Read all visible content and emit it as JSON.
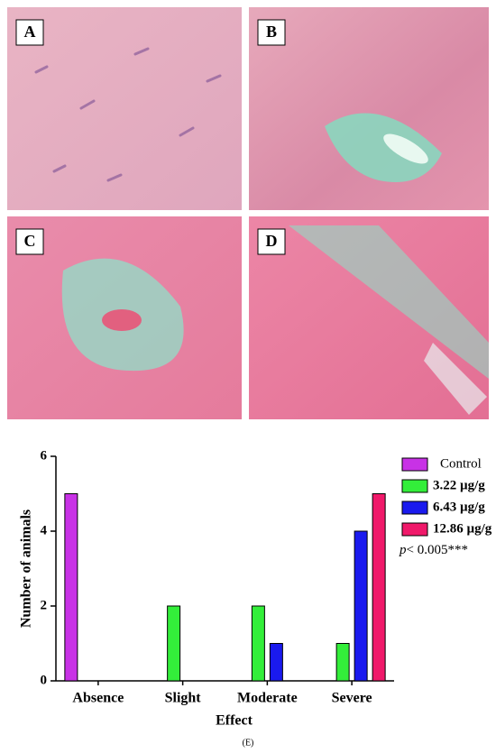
{
  "panels": [
    {
      "label": "A"
    },
    {
      "label": "B"
    },
    {
      "label": "C"
    },
    {
      "label": "D"
    }
  ],
  "chart_data": {
    "type": "bar",
    "categories": [
      "Absence",
      "Slight",
      "Moderate",
      "Severe"
    ],
    "series": [
      {
        "name": "Control",
        "color": "#c832e6",
        "values": [
          5,
          0,
          0,
          0
        ]
      },
      {
        "name": "3.22 µg/g",
        "color": "#33ee3a",
        "values": [
          0,
          2,
          2,
          1
        ]
      },
      {
        "name": "6.43 µg/g",
        "color": "#1a1aee",
        "values": [
          0,
          0,
          1,
          4
        ]
      },
      {
        "name": "12.86 µg/g",
        "color": "#f0196a",
        "values": [
          0,
          0,
          0,
          5
        ]
      }
    ],
    "ylim": [
      0,
      6
    ],
    "yticks": [
      0,
      2,
      4,
      6
    ],
    "y_label": "Number of animals",
    "x_label": "Effect",
    "annotation_italic": "p",
    "annotation": "< 0.005***",
    "caption": "(E)"
  }
}
